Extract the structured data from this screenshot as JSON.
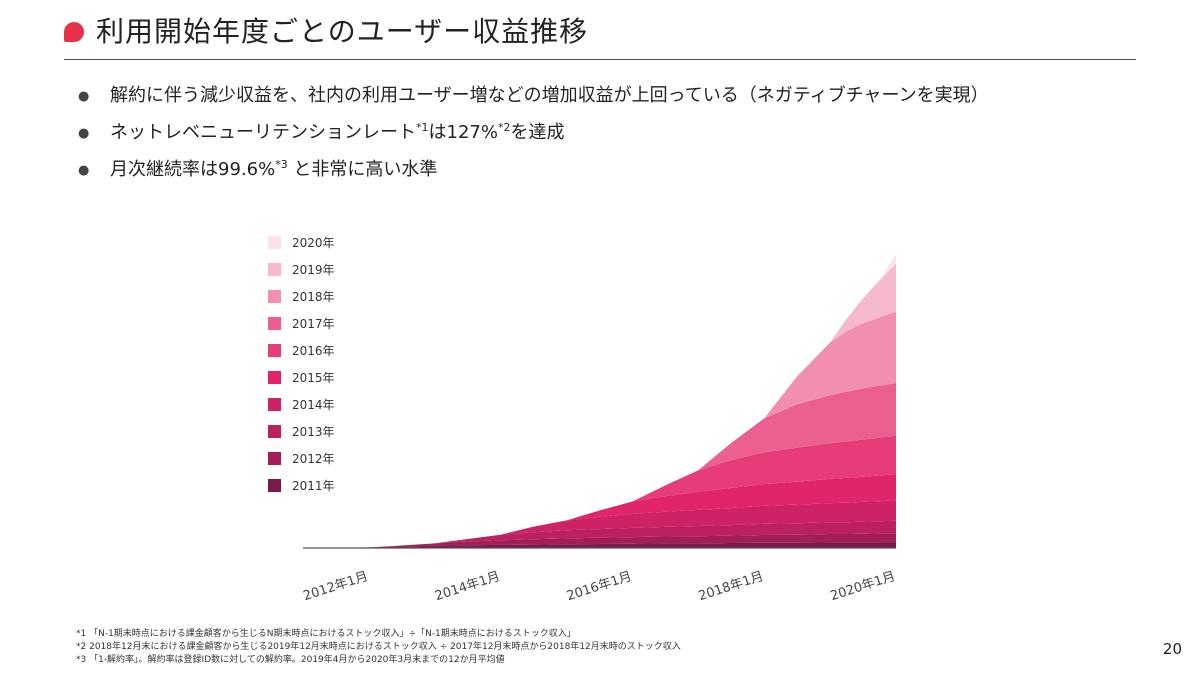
{
  "title": "利用開始年度ごとのユーザー収益推移",
  "bullets": [
    {
      "text": "解約に伴う減少収益を、社内の利用ユーザー増などの増加収益が上回っている（ネガティブチャーンを実現）"
    },
    {
      "pre": "ネットレベニューリテンションレート",
      "sup1": "*1",
      "mid": "は127%",
      "sup2": "*2",
      "post": "を達成"
    },
    {
      "pre": "月次継続率は99.6%",
      "sup1": "*3",
      "post": " と非常に高い水準"
    }
  ],
  "chart_data": {
    "type": "area",
    "stacked": true,
    "title": "",
    "xlabel": "",
    "ylabel": "",
    "x_tick_labels": [
      "2012年1月",
      "2014年1月",
      "2016年1月",
      "2018年1月",
      "2020年1月"
    ],
    "x_ticks": [
      2012.0,
      2014.0,
      2016.0,
      2018.0,
      2020.0
    ],
    "xlim": [
      2011.0,
      2020.0
    ],
    "ylim": [
      0,
      100
    ],
    "y_axis_visible": false,
    "grid": false,
    "legend_placement": "top-left",
    "x": [
      2011.0,
      2011.5,
      2012.0,
      2012.5,
      2013.0,
      2013.5,
      2014.0,
      2014.5,
      2015.0,
      2015.5,
      2016.0,
      2016.5,
      2017.0,
      2017.5,
      2018.0,
      2018.5,
      2019.0,
      2019.25,
      2019.5,
      2019.75,
      2020.0
    ],
    "series": [
      {
        "name": "2011年",
        "color": "#7a1a4a",
        "values": [
          0,
          0.1,
          0.2,
          0.5,
          0.7,
          0.9,
          1.0,
          1.1,
          1.2,
          1.3,
          1.4,
          1.5,
          1.5,
          1.6,
          1.7,
          1.7,
          1.8,
          1.8,
          1.8,
          1.9,
          1.9
        ]
      },
      {
        "name": "2012年",
        "color": "#a11f56",
        "values": [
          0,
          0,
          0,
          0.3,
          0.8,
          1.2,
          1.5,
          1.7,
          1.9,
          2.0,
          2.1,
          2.2,
          2.3,
          2.4,
          2.5,
          2.6,
          2.7,
          2.7,
          2.8,
          2.8,
          2.9
        ]
      },
      {
        "name": "2013年",
        "color": "#bb2160",
        "values": [
          0,
          0,
          0,
          0,
          0,
          0.8,
          1.8,
          2.3,
          2.6,
          2.8,
          3.0,
          3.1,
          3.3,
          3.4,
          3.6,
          3.7,
          3.8,
          3.8,
          3.9,
          3.9,
          4.0
        ]
      },
      {
        "name": "2014年",
        "color": "#cd2265",
        "values": [
          0,
          0,
          0,
          0,
          0,
          0,
          0,
          1.8,
          3.2,
          4.0,
          4.5,
          4.9,
          5.2,
          5.5,
          5.8,
          6.0,
          6.2,
          6.3,
          6.4,
          6.5,
          6.6
        ]
      },
      {
        "name": "2015年",
        "color": "#e0256a",
        "values": [
          0,
          0,
          0,
          0,
          0,
          0,
          0,
          0,
          0,
          2.0,
          4.0,
          5.0,
          5.8,
          6.5,
          7.0,
          7.4,
          7.8,
          8.0,
          8.1,
          8.3,
          8.4
        ]
      },
      {
        "name": "2016年",
        "color": "#e63d7a",
        "values": [
          0,
          0,
          0,
          0,
          0,
          0,
          0,
          0,
          0,
          0,
          0,
          3.5,
          7.0,
          9.0,
          10.2,
          11.0,
          11.5,
          11.8,
          12.0,
          12.2,
          12.4
        ]
      },
      {
        "name": "2017年",
        "color": "#ec6091",
        "values": [
          0,
          0,
          0,
          0,
          0,
          0,
          0,
          0,
          0,
          0,
          0,
          0,
          0,
          5.5,
          11.0,
          14.0,
          15.5,
          16.0,
          16.5,
          16.8,
          17.0
        ]
      },
      {
        "name": "2018年",
        "color": "#f28eb0",
        "values": [
          0,
          0,
          0,
          0,
          0,
          0,
          0,
          0,
          0,
          0,
          0,
          0,
          0,
          0,
          0,
          9.0,
          17.0,
          19.5,
          21.0,
          22.0,
          23.0
        ]
      },
      {
        "name": "2019年",
        "color": "#f6b9ce",
        "values": [
          0,
          0,
          0,
          0,
          0,
          0,
          0,
          0,
          0,
          0,
          0,
          0,
          0,
          0,
          0,
          0,
          0,
          4.0,
          8.0,
          12.0,
          15.5
        ]
      },
      {
        "name": "2020年",
        "color": "#fbe1ea",
        "values": [
          0,
          0,
          0,
          0,
          0,
          0,
          0,
          0,
          0,
          0,
          0,
          0,
          0,
          0,
          0,
          0,
          0,
          0,
          0,
          0,
          3.0
        ]
      }
    ]
  },
  "footnotes": [
    "*1 「N-1期末時点における課金顧客から生じるN期末時点におけるストック収入」÷「N-1期末時点におけるストック収入」",
    "*2 2018年12月末における課金顧客から生じる2019年12月末時点におけるストック収入 ÷ 2017年12月末時点から2018年12月末時のストック収入",
    "*3 「1-解約率」。解約率は登録ID数に対しての解約率。2019年4月から2020年3月末までの12か月平均値"
  ],
  "page_number": "20"
}
